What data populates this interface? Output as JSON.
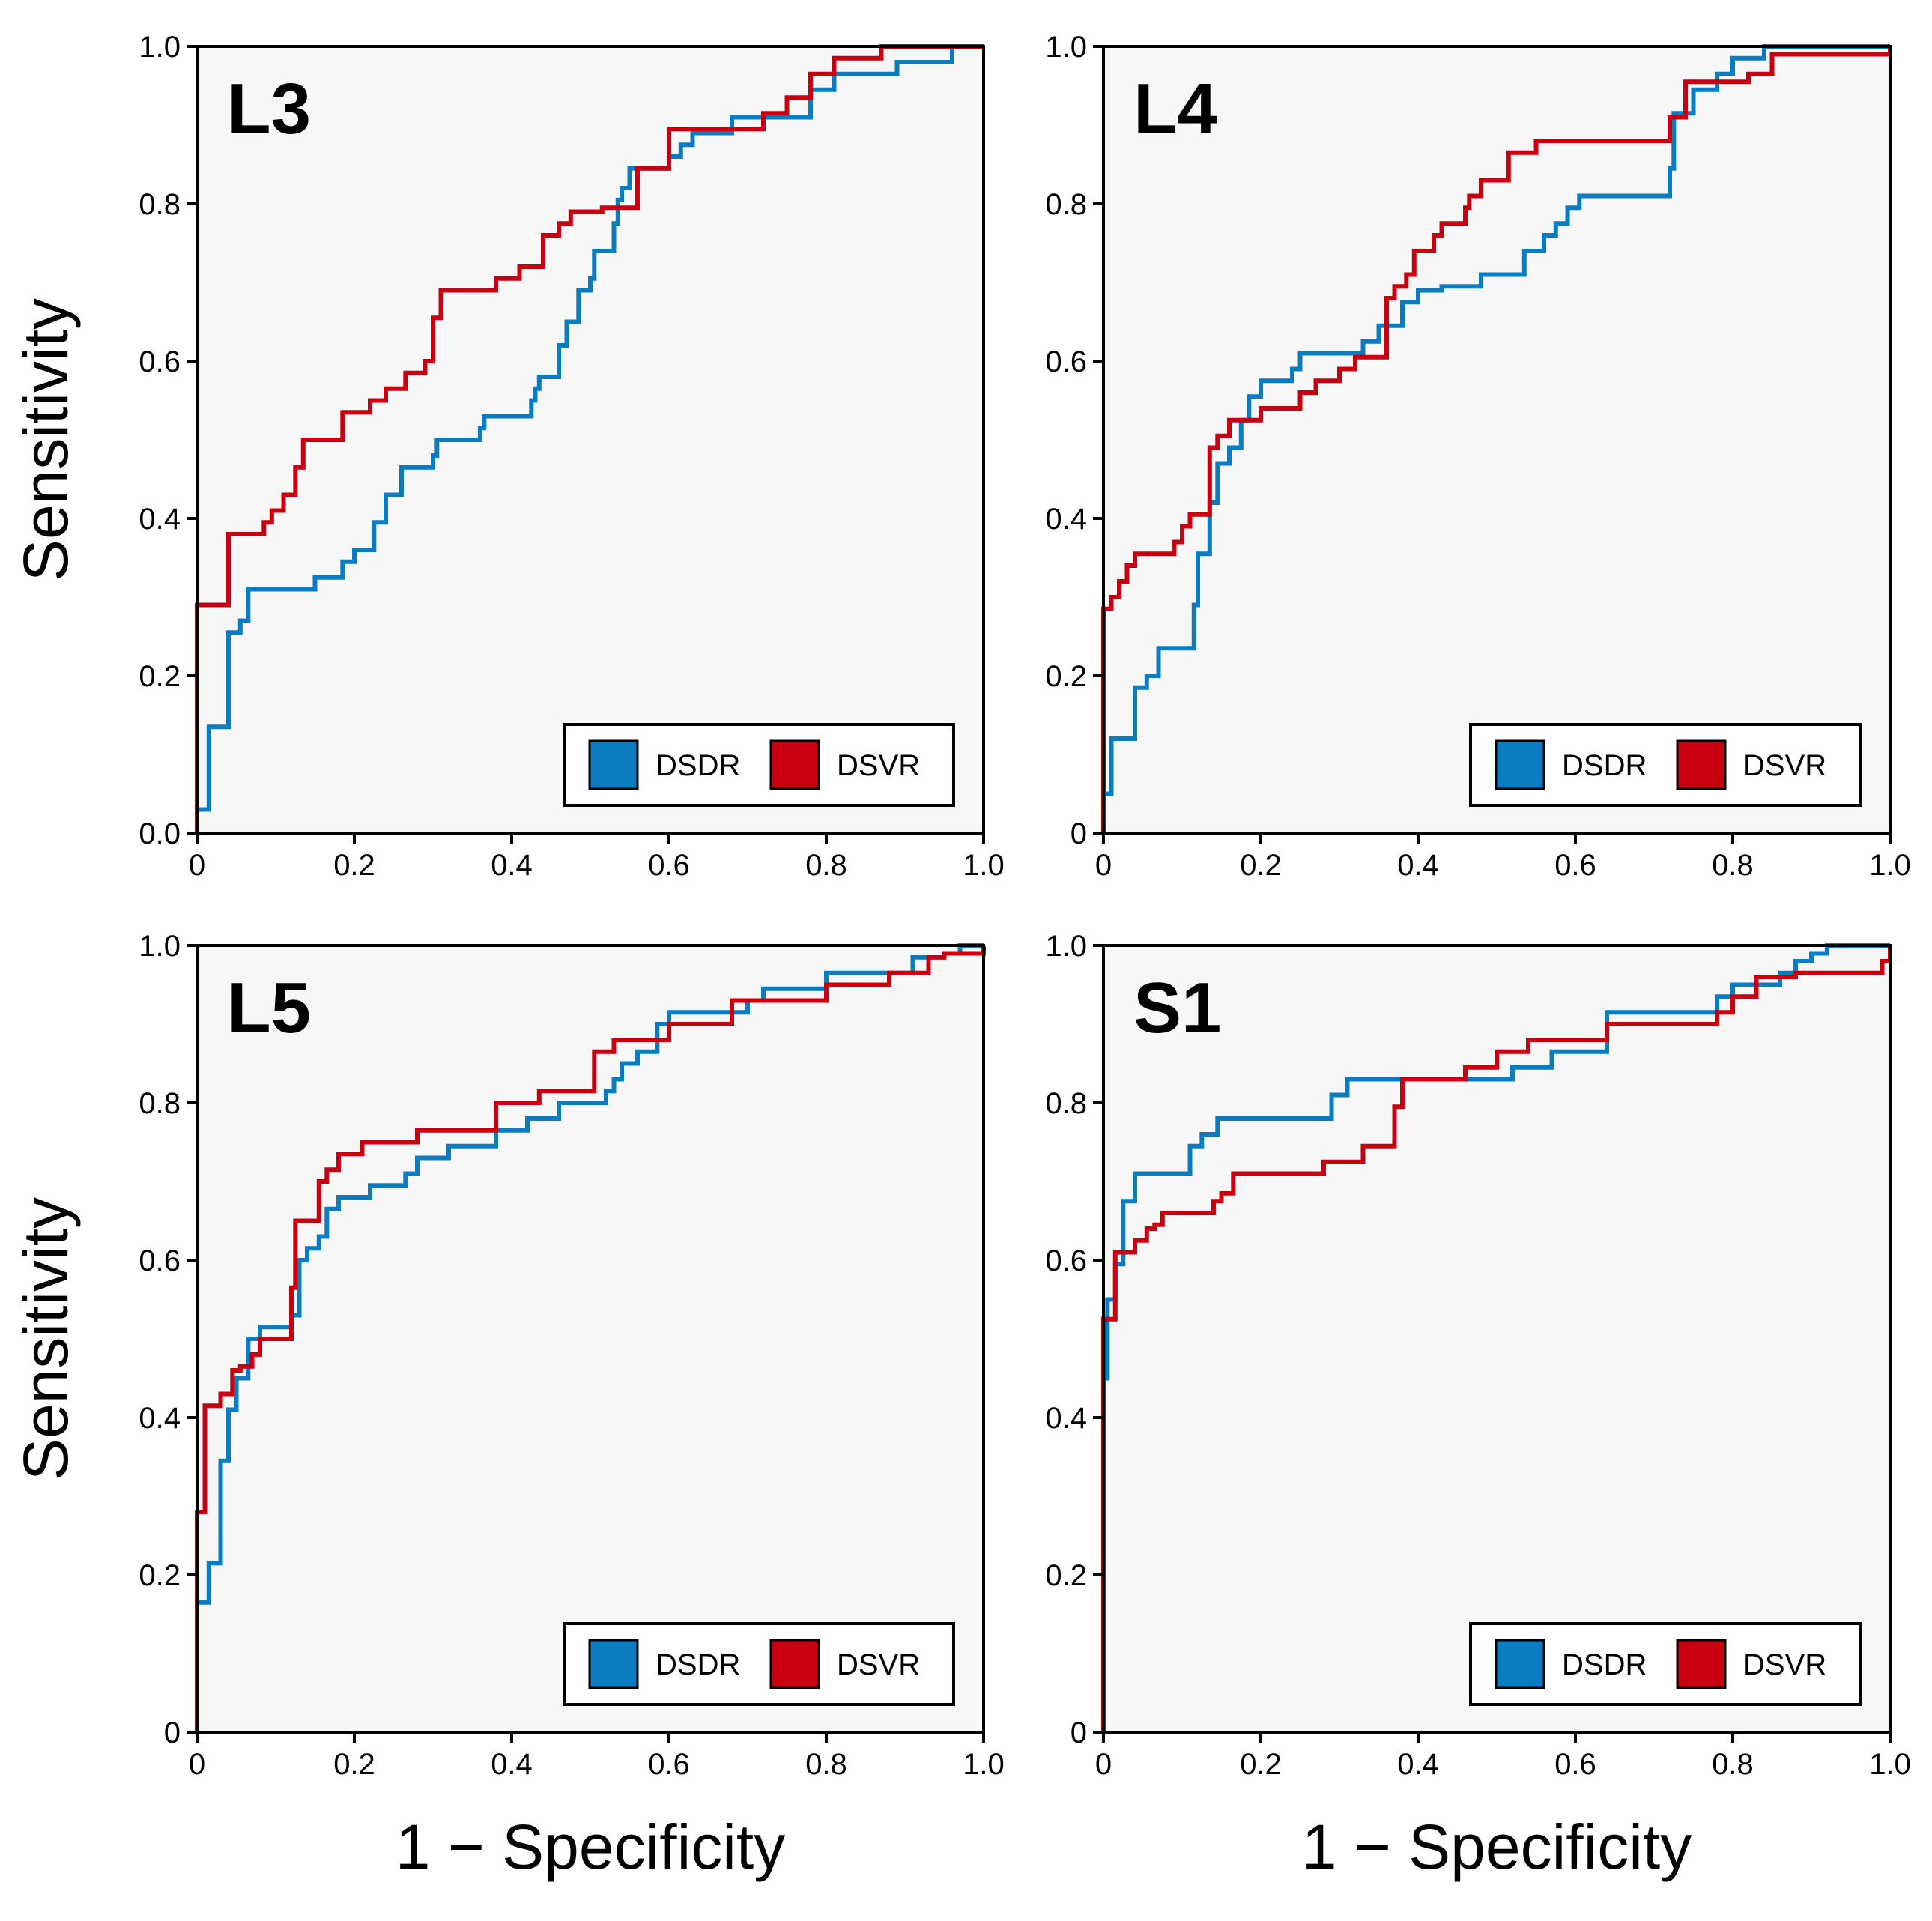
{
  "figure": {
    "ylabel": "Sensitivity",
    "xlabel": "1 − Specificity"
  },
  "colors": {
    "DSDR": "#0a7dc2",
    "DSVR": "#c8000f",
    "panel_bg": "#f7f7f7"
  },
  "legend_placement": "bottom-right",
  "chart_data": [
    {
      "type": "line",
      "title": "L3",
      "xlim": [
        0,
        1
      ],
      "ylim": [
        0,
        1
      ],
      "xticks": [
        "0",
        "0.2",
        "0.4",
        "0.6",
        "0.8",
        "1.0"
      ],
      "yticks": [
        "0.0",
        "0.2",
        "0.4",
        "0.6",
        "0.8",
        "1.0"
      ],
      "series": [
        {
          "name": "DSDR",
          "x": [
            0,
            0.005,
            0.015,
            0.04,
            0.04,
            0.055,
            0.065,
            0.135,
            0.15,
            0.185,
            0.2,
            0.225,
            0.24,
            0.26,
            0.3,
            0.305,
            0.36,
            0.365,
            0.425,
            0.43,
            0.435,
            0.46,
            0.47,
            0.485,
            0.5,
            0.505,
            0.53,
            0.535,
            0.54,
            0.55,
            0.59,
            0.6,
            0.615,
            0.63,
            0.68,
            0.78,
            0.81,
            0.89,
            0.96,
            1.0
          ],
          "y": [
            0.03,
            0.03,
            0.135,
            0.135,
            0.255,
            0.27,
            0.31,
            0.31,
            0.325,
            0.345,
            0.36,
            0.395,
            0.43,
            0.465,
            0.48,
            0.5,
            0.515,
            0.53,
            0.55,
            0.565,
            0.58,
            0.62,
            0.65,
            0.69,
            0.705,
            0.74,
            0.775,
            0.805,
            0.82,
            0.845,
            0.845,
            0.86,
            0.875,
            0.89,
            0.91,
            0.945,
            0.965,
            0.98,
            1.0,
            1.0
          ]
        },
        {
          "name": "DSVR",
          "x": [
            0,
            0.04,
            0.085,
            0.095,
            0.11,
            0.125,
            0.135,
            0.185,
            0.22,
            0.24,
            0.265,
            0.29,
            0.3,
            0.31,
            0.38,
            0.41,
            0.44,
            0.46,
            0.475,
            0.495,
            0.515,
            0.56,
            0.6,
            0.72,
            0.75,
            0.78,
            0.81,
            0.87,
            1.0
          ],
          "y": [
            0.29,
            0.38,
            0.395,
            0.41,
            0.43,
            0.465,
            0.5,
            0.535,
            0.55,
            0.565,
            0.585,
            0.6,
            0.655,
            0.69,
            0.705,
            0.72,
            0.76,
            0.775,
            0.79,
            0.79,
            0.795,
            0.845,
            0.895,
            0.915,
            0.935,
            0.965,
            0.985,
            1.0,
            1.0
          ]
        }
      ]
    },
    {
      "type": "line",
      "title": "L4",
      "xlim": [
        0,
        1
      ],
      "ylim": [
        0,
        1
      ],
      "xticks": [
        "0",
        "0.2",
        "0.4",
        "0.6",
        "0.8",
        "1.0"
      ],
      "yticks": [
        "0",
        "0.2",
        "0.4",
        "0.6",
        "0.8",
        "1.0"
      ],
      "series": [
        {
          "name": "DSDR",
          "x": [
            0,
            0.01,
            0.04,
            0.055,
            0.07,
            0.115,
            0.12,
            0.135,
            0.145,
            0.16,
            0.175,
            0.185,
            0.2,
            0.24,
            0.25,
            0.28,
            0.33,
            0.35,
            0.38,
            0.4,
            0.43,
            0.48,
            0.535,
            0.56,
            0.575,
            0.59,
            0.605,
            0.72,
            0.725,
            0.75,
            0.78,
            0.8,
            0.84,
            1.0
          ],
          "y": [
            0.05,
            0.12,
            0.185,
            0.2,
            0.235,
            0.29,
            0.355,
            0.42,
            0.47,
            0.49,
            0.525,
            0.555,
            0.575,
            0.59,
            0.61,
            0.61,
            0.625,
            0.645,
            0.675,
            0.69,
            0.695,
            0.71,
            0.74,
            0.76,
            0.775,
            0.795,
            0.81,
            0.845,
            0.915,
            0.945,
            0.965,
            0.985,
            1.0,
            1.0
          ]
        },
        {
          "name": "DSVR",
          "x": [
            0,
            0.01,
            0.02,
            0.03,
            0.04,
            0.09,
            0.1,
            0.11,
            0.135,
            0.145,
            0.16,
            0.2,
            0.25,
            0.27,
            0.3,
            0.32,
            0.36,
            0.37,
            0.385,
            0.395,
            0.42,
            0.43,
            0.46,
            0.465,
            0.48,
            0.515,
            0.55,
            0.6,
            0.72,
            0.74,
            0.82,
            0.85,
            1.0
          ],
          "y": [
            0.285,
            0.3,
            0.32,
            0.34,
            0.355,
            0.37,
            0.39,
            0.405,
            0.49,
            0.505,
            0.525,
            0.54,
            0.56,
            0.575,
            0.59,
            0.605,
            0.68,
            0.695,
            0.71,
            0.74,
            0.76,
            0.775,
            0.795,
            0.81,
            0.83,
            0.865,
            0.88,
            0.88,
            0.91,
            0.955,
            0.965,
            0.99,
            1.0
          ]
        }
      ]
    },
    {
      "type": "line",
      "title": "L5",
      "xlim": [
        0,
        1
      ],
      "ylim": [
        0,
        1
      ],
      "xticks": [
        "0",
        "0.2",
        "0.4",
        "0.6",
        "0.8",
        "1.0"
      ],
      "yticks": [
        "0",
        "0.2",
        "0.4",
        "0.6",
        "0.8",
        "1.0"
      ],
      "series": [
        {
          "name": "DSDR",
          "x": [
            0,
            0.015,
            0.03,
            0.04,
            0.05,
            0.065,
            0.08,
            0.12,
            0.13,
            0.14,
            0.155,
            0.165,
            0.18,
            0.22,
            0.265,
            0.28,
            0.32,
            0.38,
            0.42,
            0.46,
            0.52,
            0.53,
            0.54,
            0.56,
            0.585,
            0.6,
            0.7,
            0.72,
            0.8,
            0.91,
            0.95,
            0.97,
            1.0
          ],
          "y": [
            0.165,
            0.215,
            0.345,
            0.41,
            0.45,
            0.5,
            0.515,
            0.53,
            0.6,
            0.615,
            0.63,
            0.665,
            0.68,
            0.695,
            0.71,
            0.73,
            0.745,
            0.765,
            0.78,
            0.8,
            0.815,
            0.83,
            0.85,
            0.865,
            0.9,
            0.915,
            0.93,
            0.945,
            0.965,
            0.985,
            0.99,
            1.0,
            1.0
          ]
        },
        {
          "name": "DSVR",
          "x": [
            0,
            0.01,
            0.03,
            0.045,
            0.055,
            0.07,
            0.08,
            0.09,
            0.12,
            0.125,
            0.155,
            0.165,
            0.18,
            0.21,
            0.28,
            0.38,
            0.435,
            0.505,
            0.53,
            0.6,
            0.68,
            0.8,
            0.88,
            0.93,
            0.95,
            1.0
          ],
          "y": [
            0.28,
            0.415,
            0.43,
            0.46,
            0.465,
            0.48,
            0.5,
            0.5,
            0.565,
            0.65,
            0.7,
            0.715,
            0.735,
            0.75,
            0.765,
            0.8,
            0.815,
            0.865,
            0.88,
            0.9,
            0.93,
            0.95,
            0.965,
            0.985,
            0.99,
            1.0
          ]
        }
      ]
    },
    {
      "type": "line",
      "title": "S1",
      "xlim": [
        0,
        1
      ],
      "ylim": [
        0,
        1
      ],
      "xticks": [
        "0",
        "0.2",
        "0.4",
        "0.6",
        "0.8",
        "1.0"
      ],
      "yticks": [
        "0",
        "0.2",
        "0.4",
        "0.6",
        "0.8",
        "1.0"
      ],
      "series": [
        {
          "name": "DSDR",
          "x": [
            0,
            0.005,
            0.015,
            0.025,
            0.04,
            0.1,
            0.11,
            0.125,
            0.145,
            0.28,
            0.29,
            0.31,
            0.37,
            0.48,
            0.52,
            0.57,
            0.64,
            0.78,
            0.8,
            0.86,
            0.88,
            0.9,
            0.92,
            1.0
          ],
          "y": [
            0.45,
            0.55,
            0.595,
            0.675,
            0.71,
            0.71,
            0.745,
            0.76,
            0.78,
            0.78,
            0.81,
            0.83,
            0.83,
            0.83,
            0.845,
            0.865,
            0.915,
            0.935,
            0.95,
            0.965,
            0.98,
            0.99,
            1.0,
            1.0
          ]
        },
        {
          "name": "DSVR",
          "x": [
            0,
            0.015,
            0.04,
            0.055,
            0.065,
            0.075,
            0.14,
            0.15,
            0.165,
            0.22,
            0.28,
            0.33,
            0.37,
            0.38,
            0.46,
            0.5,
            0.54,
            0.64,
            0.78,
            0.8,
            0.83,
            0.88,
            0.99,
            1.0
          ],
          "y": [
            0.525,
            0.61,
            0.625,
            0.64,
            0.645,
            0.66,
            0.675,
            0.685,
            0.71,
            0.71,
            0.725,
            0.745,
            0.795,
            0.83,
            0.845,
            0.865,
            0.88,
            0.9,
            0.915,
            0.935,
            0.96,
            0.965,
            0.98,
            1.0
          ]
        }
      ]
    }
  ]
}
